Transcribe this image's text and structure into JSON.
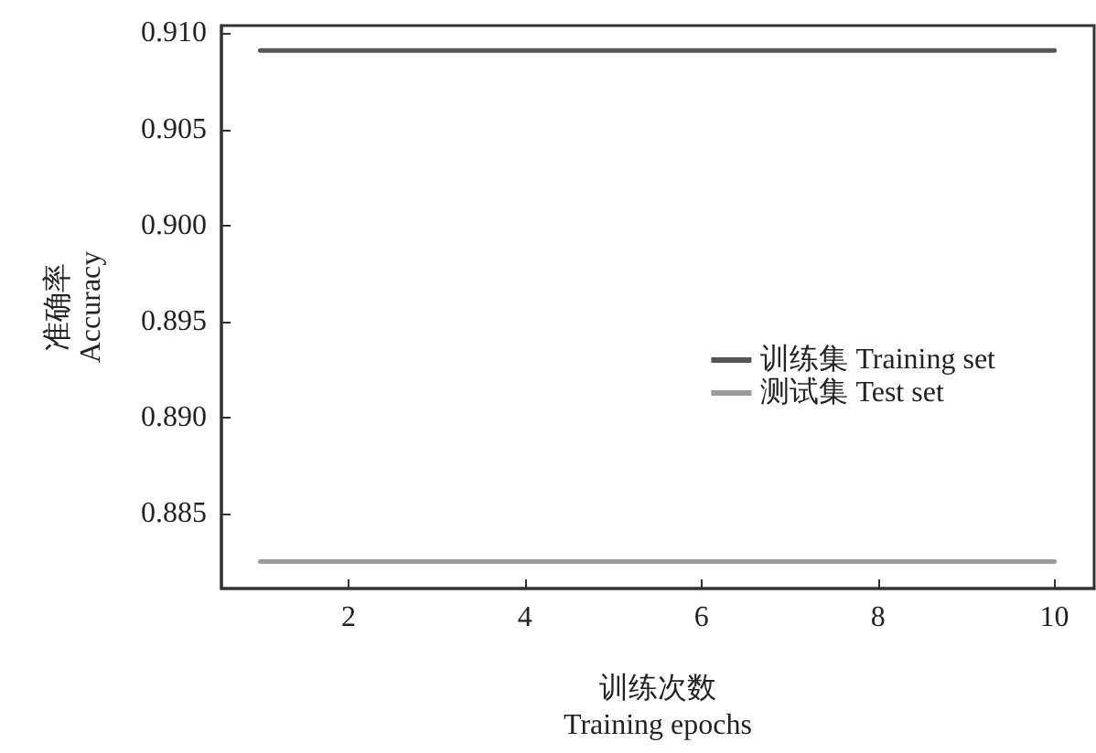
{
  "chart_data": {
    "type": "line",
    "xlabel": "训练次数\nTraining epochs",
    "ylabel": "准确率\nAccuracy",
    "x": [
      1,
      10
    ],
    "series": [
      {
        "name": "训练集 Training set",
        "color": "#555555",
        "values": [
          0.9091,
          0.9091
        ]
      },
      {
        "name": "测试集 Test set",
        "color": "#9a9a9a",
        "values": [
          0.8825,
          0.8825
        ]
      }
    ],
    "xlim": [
      0.56,
      10.45
    ],
    "xticks": [
      2,
      4,
      6,
      8,
      10
    ],
    "ylim": [
      0.8811,
      0.9104
    ],
    "yticks": [
      0.885,
      {
        "value": 0.89,
        "label": "0.890"
      },
      0.895,
      {
        "value": 0.9,
        "label": "0.900"
      },
      0.905,
      {
        "value": 0.91,
        "label": "0.910"
      }
    ],
    "grid": false,
    "legend": "right",
    "marker": "none",
    "line_style": "solid"
  }
}
